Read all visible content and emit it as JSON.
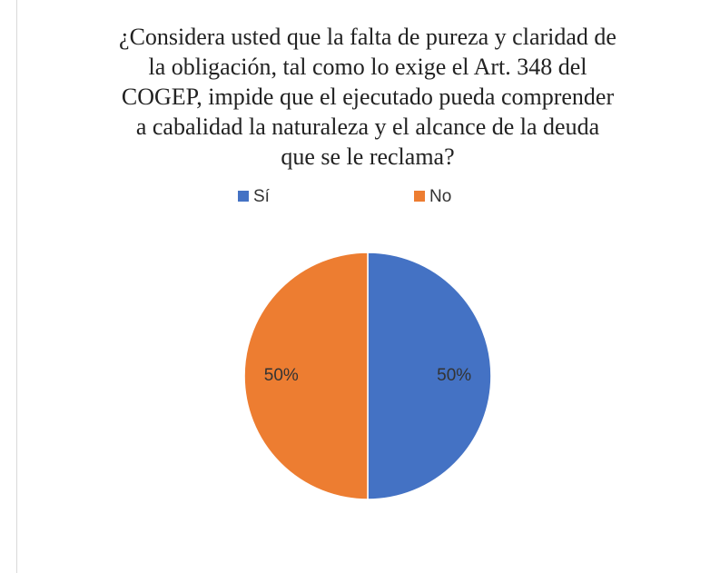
{
  "chart_data": {
    "type": "pie",
    "title": [
      "¿Considera usted que la falta de pureza y claridad de",
      "la obligación, tal como lo exige el Art. 348 del",
      "COGEP, impide que el ejecutado pueda comprender",
      "a cabalidad la naturaleza y el alcance de la deuda",
      "que se le reclama?"
    ],
    "categories": [
      "Sí",
      "No"
    ],
    "values": [
      50,
      50
    ],
    "value_labels": [
      "50%",
      "50%"
    ],
    "colors": [
      "#4472c4",
      "#ed7d31"
    ],
    "legend": "top"
  }
}
